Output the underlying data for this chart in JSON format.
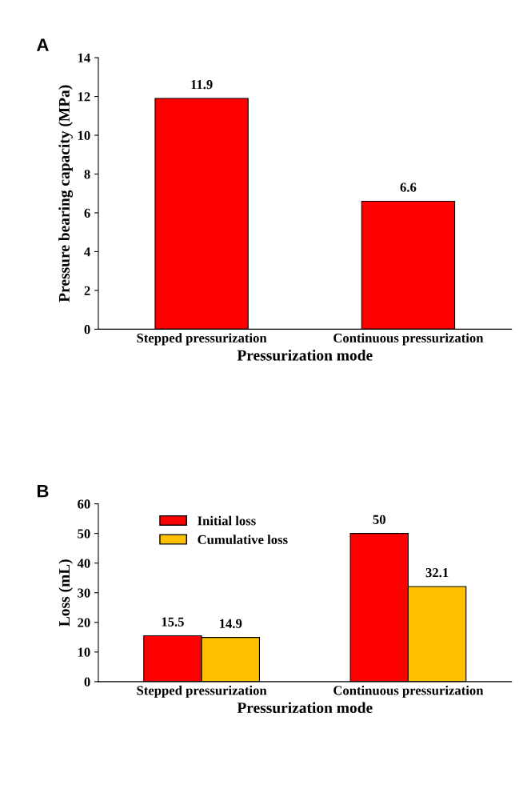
{
  "chart_data": [
    {
      "type": "bar",
      "title": "A",
      "xlabel": "Pressurization mode",
      "ylabel": "Pressure bearing capacity (MPa)",
      "categories": [
        "Stepped pressurization",
        "Continuous pressurization"
      ],
      "series": [
        {
          "color": "#ff0000",
          "values": [
            11.9,
            6.6
          ]
        }
      ],
      "ylim": [
        0,
        14
      ],
      "yticks": [
        0,
        2,
        4,
        6,
        8,
        10,
        12,
        14
      ],
      "data_labels": true,
      "grid": false,
      "legend": false
    },
    {
      "type": "bar",
      "title": "B",
      "xlabel": "Pressurization mode",
      "ylabel": "Loss (mL)",
      "categories": [
        "Stepped pressurization",
        "Continuous pressurization"
      ],
      "series": [
        {
          "name": "Initial loss",
          "color": "#ff0000",
          "values": [
            15.5,
            50
          ]
        },
        {
          "name": "Cumulative loss",
          "color": "#ffc000",
          "values": [
            14.9,
            32.1
          ]
        }
      ],
      "ylim": [
        0,
        60
      ],
      "yticks": [
        0,
        10,
        20,
        30,
        40,
        50,
        60
      ],
      "data_labels": true,
      "grid": false,
      "legend": "top left"
    }
  ]
}
